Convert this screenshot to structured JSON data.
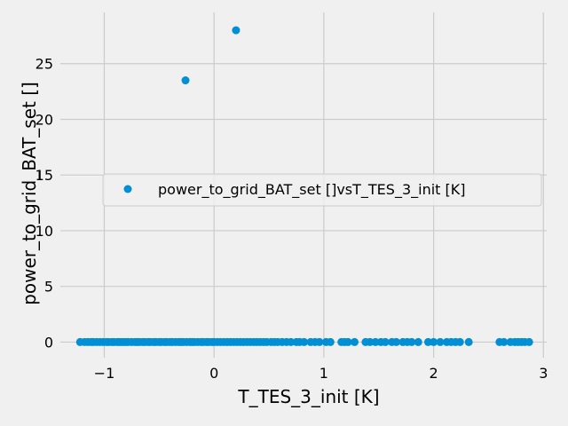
{
  "chart_data": {
    "type": "scatter",
    "xlabel": "T_TES_3_init [K]",
    "ylabel": "power_to_grid_BAT_set []",
    "xlim": [
      -1.4,
      3.03
    ],
    "ylim": [
      -1.4,
      29.6
    ],
    "xticks": [
      -1,
      0,
      1,
      2,
      3
    ],
    "xtick_labels": [
      "−1",
      "0",
      "1",
      "2",
      "3"
    ],
    "yticks": [
      0,
      5,
      10,
      15,
      20,
      25
    ],
    "ytick_labels": [
      "0",
      "5",
      "10",
      "15",
      "20",
      "25"
    ],
    "grid": true,
    "legend_position": "center-right",
    "series": [
      {
        "name": "power_to_grid_BAT_set []vsT_TES_3_init [K]",
        "color": "#008fd5",
        "points": [
          [
            -0.26,
            23.5
          ],
          [
            0.2,
            28.0
          ],
          [
            -1.22,
            0
          ],
          [
            -1.18,
            0
          ],
          [
            -1.15,
            0
          ],
          [
            -1.12,
            0
          ],
          [
            -1.1,
            0
          ],
          [
            -1.07,
            0
          ],
          [
            -1.04,
            0
          ],
          [
            -1.01,
            0
          ],
          [
            -0.98,
            0
          ],
          [
            -0.96,
            0
          ],
          [
            -0.93,
            0
          ],
          [
            -0.91,
            0
          ],
          [
            -0.88,
            0
          ],
          [
            -0.86,
            0
          ],
          [
            -0.84,
            0
          ],
          [
            -0.82,
            0
          ],
          [
            -0.8,
            0
          ],
          [
            -0.78,
            0
          ],
          [
            -0.75,
            0
          ],
          [
            -0.72,
            0
          ],
          [
            -0.7,
            0
          ],
          [
            -0.68,
            0
          ],
          [
            -0.65,
            0
          ],
          [
            -0.63,
            0
          ],
          [
            -0.6,
            0
          ],
          [
            -0.58,
            0
          ],
          [
            -0.55,
            0
          ],
          [
            -0.53,
            0
          ],
          [
            -0.5,
            0
          ],
          [
            -0.48,
            0
          ],
          [
            -0.45,
            0
          ],
          [
            -0.43,
            0
          ],
          [
            -0.4,
            0
          ],
          [
            -0.38,
            0
          ],
          [
            -0.35,
            0
          ],
          [
            -0.32,
            0
          ],
          [
            -0.3,
            0
          ],
          [
            -0.28,
            0
          ],
          [
            -0.25,
            0
          ],
          [
            -0.22,
            0
          ],
          [
            -0.2,
            0
          ],
          [
            -0.18,
            0
          ],
          [
            -0.15,
            0
          ],
          [
            -0.12,
            0
          ],
          [
            -0.1,
            0
          ],
          [
            -0.07,
            0
          ],
          [
            -0.05,
            0
          ],
          [
            -0.02,
            0
          ],
          [
            0.0,
            0
          ],
          [
            0.03,
            0
          ],
          [
            0.06,
            0
          ],
          [
            0.09,
            0
          ],
          [
            0.12,
            0
          ],
          [
            0.15,
            0
          ],
          [
            0.18,
            0
          ],
          [
            0.21,
            0
          ],
          [
            0.24,
            0
          ],
          [
            0.27,
            0
          ],
          [
            0.3,
            0
          ],
          [
            0.33,
            0
          ],
          [
            0.36,
            0
          ],
          [
            0.39,
            0
          ],
          [
            0.42,
            0
          ],
          [
            0.45,
            0
          ],
          [
            0.48,
            0
          ],
          [
            0.52,
            0
          ],
          [
            0.55,
            0
          ],
          [
            0.58,
            0
          ],
          [
            0.62,
            0
          ],
          [
            0.66,
            0
          ],
          [
            0.7,
            0
          ],
          [
            0.75,
            0
          ],
          [
            0.78,
            0
          ],
          [
            0.82,
            0
          ],
          [
            0.88,
            0
          ],
          [
            0.92,
            0
          ],
          [
            0.96,
            0
          ],
          [
            1.02,
            0
          ],
          [
            1.06,
            0
          ],
          [
            1.16,
            0
          ],
          [
            1.19,
            0
          ],
          [
            1.22,
            0
          ],
          [
            1.28,
            0
          ],
          [
            1.38,
            0
          ],
          [
            1.42,
            0
          ],
          [
            1.47,
            0
          ],
          [
            1.52,
            0
          ],
          [
            1.56,
            0
          ],
          [
            1.62,
            0
          ],
          [
            1.66,
            0
          ],
          [
            1.72,
            0
          ],
          [
            1.76,
            0
          ],
          [
            1.8,
            0
          ],
          [
            1.86,
            0
          ],
          [
            1.95,
            0
          ],
          [
            2.0,
            0
          ],
          [
            2.06,
            0
          ],
          [
            2.12,
            0
          ],
          [
            2.16,
            0
          ],
          [
            2.2,
            0
          ],
          [
            2.24,
            0
          ],
          [
            2.32,
            0
          ],
          [
            2.6,
            0
          ],
          [
            2.64,
            0
          ],
          [
            2.7,
            0
          ],
          [
            2.74,
            0
          ],
          [
            2.77,
            0
          ],
          [
            2.8,
            0
          ],
          [
            2.83,
            0
          ],
          [
            2.87,
            0
          ]
        ]
      }
    ]
  }
}
